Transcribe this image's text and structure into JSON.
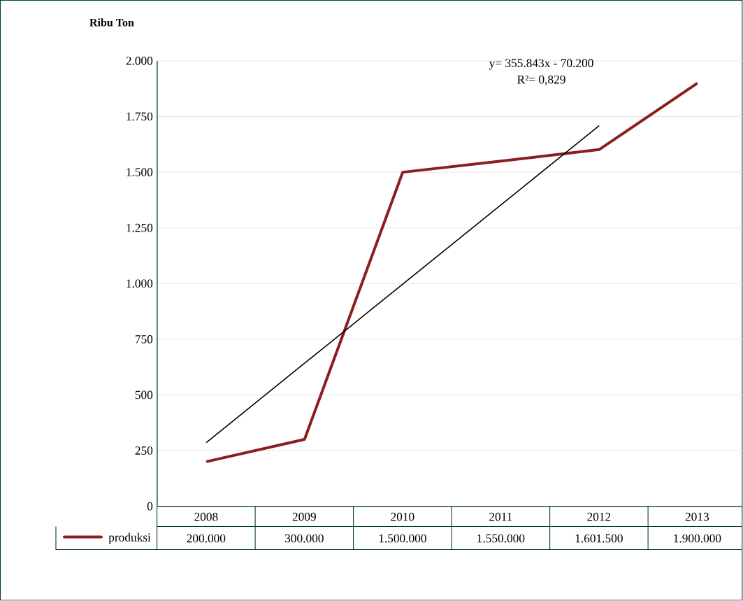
{
  "chart_data": {
    "type": "line",
    "ylabel": "Ribu Ton",
    "categories": [
      "2008",
      "2009",
      "2010",
      "2011",
      "2012",
      "2013"
    ],
    "series": [
      {
        "name": "produksi",
        "color": "#8b1e1e",
        "values": [
          200,
          300,
          1500,
          1550,
          1601.5,
          1900
        ]
      },
      {
        "color": "#000000",
        "values": [
          286,
          642,
          997,
          1353,
          1709,
          null
        ]
      }
    ],
    "ylim": [
      0,
      2000
    ],
    "yticks": [
      0,
      250,
      500,
      750,
      {
        "value": 1000,
        "label": "1.000"
      },
      {
        "value": 1250,
        "label": "1.250"
      },
      {
        "value": 1500,
        "label": "1.500"
      },
      {
        "value": 1750,
        "label": "1.750"
      },
      {
        "value": 2000,
        "label": "2.000"
      }
    ],
    "grid": "y",
    "legend": "bottom",
    "annotations": [
      "y= 355.843x - 70.200",
      "R²= 0,829",
      "200.000",
      "300.000",
      "1.500.000",
      "1.550.000",
      "1.601.500",
      "1.900.000"
    ]
  }
}
